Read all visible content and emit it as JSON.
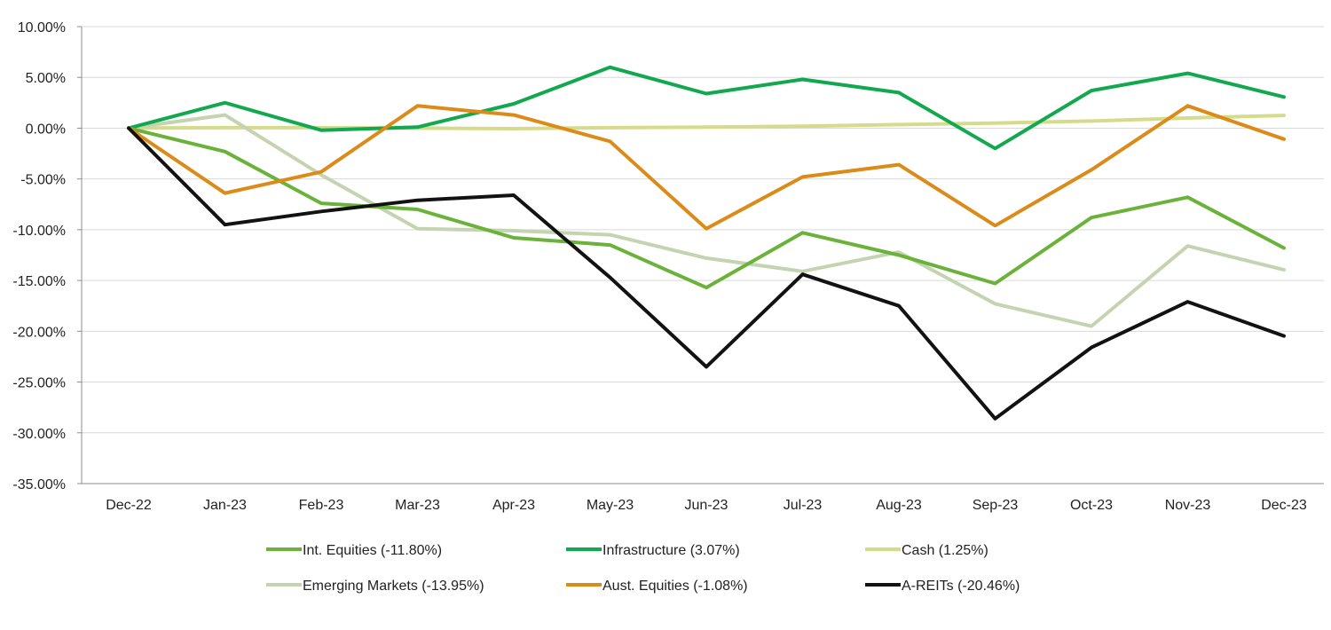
{
  "chart_data": {
    "type": "line",
    "title": "",
    "xlabel": "",
    "ylabel": "",
    "categories": [
      "Dec-22",
      "Jan-23",
      "Feb-23",
      "Mar-23",
      "Apr-23",
      "May-23",
      "Jun-23",
      "Jul-23",
      "Aug-23",
      "Sep-23",
      "Oct-23",
      "Nov-23",
      "Dec-23"
    ],
    "ylim": [
      -35,
      10
    ],
    "yticks": [
      10,
      5,
      0,
      -5,
      -10,
      -15,
      -20,
      -25,
      -30,
      -35
    ],
    "ytick_labels": [
      "10.00%",
      "5.00%",
      "0.00%",
      "-5.00%",
      "-10.00%",
      "-15.00%",
      "-20.00%",
      "-25.00%",
      "-30.00%",
      "-35.00%"
    ],
    "grid": true,
    "legend_position": "bottom",
    "series": [
      {
        "name": "Cash",
        "label": "Cash (1.25%)",
        "color": "#d4dc8c",
        "values": [
          0,
          0.05,
          0.05,
          0.0,
          -0.05,
          0.05,
          0.1,
          0.2,
          0.35,
          0.5,
          0.7,
          1.0,
          1.25
        ]
      },
      {
        "name": "Emerging Markets",
        "label": "Emerging Markets (-13.95%)",
        "color": "#c4d4b0",
        "values": [
          0,
          1.3,
          -4.6,
          -9.9,
          -10.1,
          -10.5,
          -12.8,
          -14.1,
          -12.2,
          -17.3,
          -19.5,
          -11.6,
          -13.95
        ]
      },
      {
        "name": "Infrastructure",
        "label": "Infrastructure (3.07%)",
        "color": "#12a84e",
        "values": [
          0,
          2.5,
          -0.2,
          0.1,
          2.4,
          6.0,
          3.4,
          4.8,
          3.5,
          -2.0,
          3.7,
          5.4,
          3.07
        ]
      },
      {
        "name": "Int. Equities",
        "label": "Int. Equities (-11.80%)",
        "color": "#6bb23a",
        "values": [
          0,
          -2.3,
          -7.4,
          -8.0,
          -10.8,
          -11.5,
          -15.7,
          -10.3,
          -12.5,
          -15.3,
          -8.8,
          -6.8,
          -11.8
        ]
      },
      {
        "name": "Aust. Equities",
        "label": "Aust. Equities (-1.08%)",
        "color": "#dc8a18",
        "values": [
          0,
          -6.4,
          -4.3,
          2.2,
          1.3,
          -1.3,
          -9.9,
          -4.8,
          -3.6,
          -9.6,
          -4.1,
          2.2,
          -1.08
        ]
      },
      {
        "name": "A-REITs",
        "label": "A-REITs (-20.46%)",
        "color": "#121212",
        "values": [
          0,
          -9.5,
          -8.2,
          -7.1,
          -6.6,
          -14.7,
          -23.5,
          -14.4,
          -17.5,
          -28.6,
          -21.6,
          -17.1,
          -20.46
        ]
      }
    ],
    "legend_rows": [
      [
        "Int. Equities",
        "Infrastructure",
        "Cash"
      ],
      [
        "Emerging Markets",
        "Aust. Equities",
        "A-REITs"
      ]
    ]
  }
}
